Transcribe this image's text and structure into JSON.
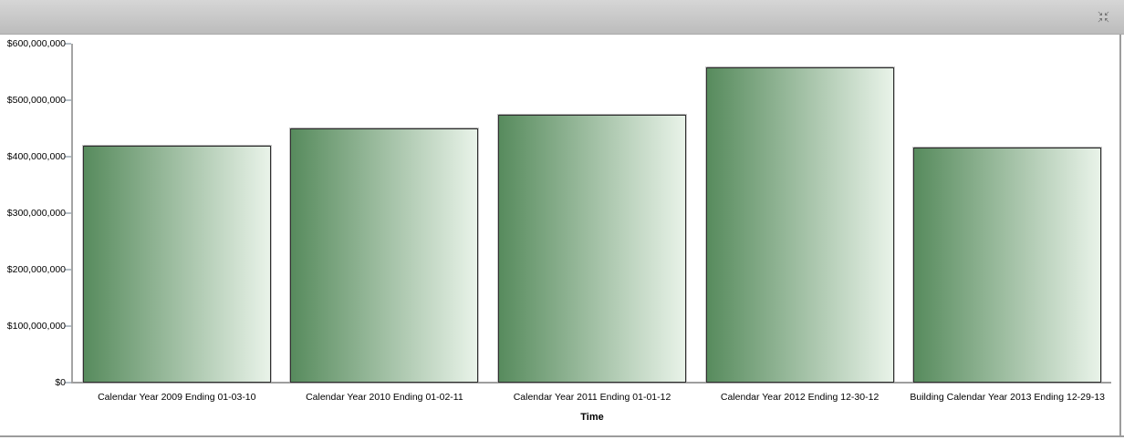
{
  "header": {
    "collapse_icon": "collapse-arrows-icon"
  },
  "chart_data": {
    "type": "bar",
    "title": "",
    "xlabel": "Time",
    "ylabel": "",
    "categories": [
      "Calendar Year 2009 Ending 01-03-10",
      "Calendar Year 2010 Ending 01-02-11",
      "Calendar Year 2011 Ending 01-01-12",
      "Calendar Year 2012 Ending 12-30-12",
      "Building Calendar Year 2013 Ending 12-29-13"
    ],
    "values": [
      419000000,
      450000000,
      474000000,
      558000000,
      416000000
    ],
    "ylim": [
      0,
      600000000
    ],
    "ytick_interval": 100000000,
    "ytick_labels": [
      "$0",
      "$100,000,000",
      "$200,000,000",
      "$300,000,000",
      "$400,000,000",
      "$500,000,000",
      "$600,000,000"
    ],
    "grid": false,
    "legend": false,
    "bar_gradient_start": "#578b5d",
    "bar_gradient_end": "#e9f3e9",
    "bar_border_color": "#2f2f2f",
    "axis_line_color": "#a4a4a4",
    "tick_color": "#b5bfc7"
  },
  "colors": {
    "header_gradient_top": "#d6d6d6",
    "header_gradient_bottom": "#bcbcbc",
    "panel_border": "#9c9c9c",
    "background": "#ffffff",
    "icon": "#767676"
  }
}
